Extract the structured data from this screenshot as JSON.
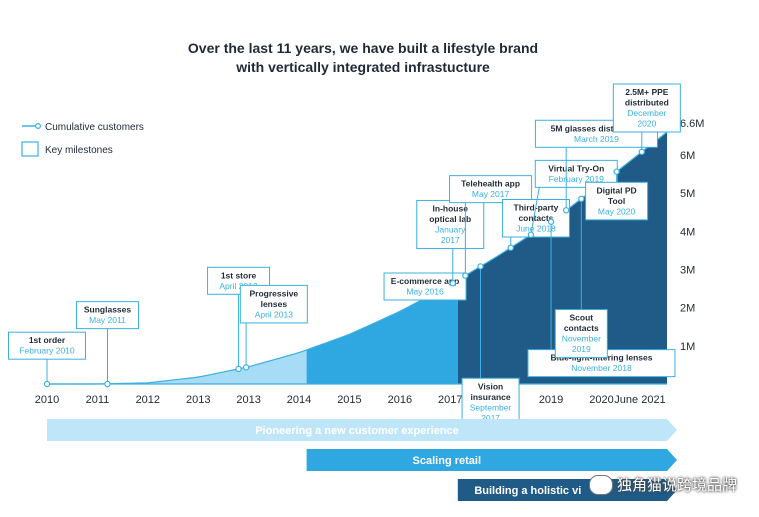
{
  "chart_data": {
    "type": "area",
    "title_lines": [
      "Over the last 11 years, we have built a lifestyle brand",
      "with vertically integrated infrastucture"
    ],
    "legend": [
      {
        "label": "Cumulative customers",
        "kind": "line"
      },
      {
        "label": "Key milestones",
        "kind": "box"
      }
    ],
    "x_ticks": [
      {
        "label": "2010",
        "t": 2010
      },
      {
        "label": "2011",
        "t": 2011
      },
      {
        "label": "2012",
        "t": 2012
      },
      {
        "label": "2013",
        "t": 2013
      },
      {
        "label": "2013",
        "t": 2014
      },
      {
        "label": "2014",
        "t": 2015
      },
      {
        "label": "2015",
        "t": 2016
      },
      {
        "label": "2016",
        "t": 2017
      },
      {
        "label": "2017",
        "t": 2018
      },
      {
        "label": "2018",
        "t": 2019
      },
      {
        "label": "2019",
        "t": 2020
      },
      {
        "label": "2020",
        "t": 2021
      },
      {
        "label": "June 2021",
        "t": 2022.3
      }
    ],
    "y_ticks": [
      {
        "label": "1M",
        "value": 1
      },
      {
        "label": "2M",
        "value": 2
      },
      {
        "label": "3M",
        "value": 3
      },
      {
        "label": "4M",
        "value": 4
      },
      {
        "label": "5M",
        "value": 5
      },
      {
        "label": "6M",
        "value": 6
      },
      {
        "label": "6.6M",
        "value": 6.6
      }
    ],
    "y_unit": "M customers",
    "xlim": [
      2010,
      2022.3
    ],
    "ylim": [
      0,
      6.6
    ],
    "series": [
      {
        "x": [
          2010,
          2011,
          2012,
          2013,
          2014,
          2015,
          2016,
          2017,
          2018,
          2019,
          2020,
          2021,
          2022.3
        ],
        "values": [
          0,
          0,
          0.03,
          0.18,
          0.45,
          0.82,
          1.3,
          1.9,
          2.6,
          3.4,
          4.25,
          5.25,
          6.6
        ]
      }
    ],
    "shaded_phases": [
      {
        "from": 2011.9,
        "to": 2015.15,
        "color": "#a6dcf6"
      },
      {
        "from": 2015.15,
        "to": 2018.15,
        "color": "#2fa7e0"
      },
      {
        "from": 2018.15,
        "to": 2022.3,
        "color": "#1f5b86"
      }
    ],
    "milestones": [
      {
        "title": [
          "1st order"
        ],
        "date": [
          "February 2010"
        ],
        "t": 2010,
        "box_pos": [
          2010,
          0.65
        ],
        "anchor": "below"
      },
      {
        "title": [
          "Sunglasses"
        ],
        "date": [
          "May 2011"
        ],
        "t": 2011.2,
        "box_pos": [
          2011.2,
          1.45
        ],
        "anchor": "below"
      },
      {
        "title": [
          "1st store"
        ],
        "date": [
          "April 2013"
        ],
        "t": 2013.8,
        "box_pos": [
          2013.8,
          2.35
        ],
        "anchor": "below"
      },
      {
        "title": [
          "Progressive",
          "lenses"
        ],
        "date": [
          "April 2013"
        ],
        "t": 2013.95,
        "box_pos": [
          2014.5,
          1.6
        ],
        "anchor": "below"
      },
      {
        "title": [
          "E-commerce app"
        ],
        "date": [
          "May 2016"
        ],
        "t": 2017.5,
        "box_pos": [
          2017.5,
          2.2
        ],
        "anchor": "below"
      },
      {
        "title": [
          "In-house",
          "optical lab"
        ],
        "date": [
          "January",
          "2017"
        ],
        "t": 2018.05,
        "box_pos": [
          2018.0,
          3.55
        ],
        "anchor": "below"
      },
      {
        "title": [
          "Telehealth app"
        ],
        "date": [
          "May 2017"
        ],
        "t": 2018.3,
        "box_pos": [
          2018.8,
          4.75
        ],
        "anchor": "below"
      },
      {
        "title": [
          "Vision",
          "insurance"
        ],
        "date": [
          "September",
          "2017"
        ],
        "t": 2018.6,
        "box_pos": [
          2018.8,
          0.15
        ],
        "anchor": "above"
      },
      {
        "title": [
          "Third-party",
          "contacts"
        ],
        "date": [
          "June 2018"
        ],
        "t": 2019.2,
        "box_pos": [
          2019.7,
          3.85
        ],
        "anchor": "below"
      },
      {
        "title": [
          "Virtual Try-On"
        ],
        "date": [
          "February 2019"
        ],
        "t": 2019.6,
        "box_pos": [
          2020.5,
          5.15
        ],
        "anchor": "below"
      },
      {
        "title": [
          "Blue-light-filtering lenses"
        ],
        "date": [
          "November 2018"
        ],
        "t": 2020.0,
        "box_pos": [
          2021.0,
          0.9
        ],
        "anchor": "above"
      },
      {
        "title": [
          "5M glasses distributed"
        ],
        "date": [
          "March 2019"
        ],
        "t": 2020.3,
        "box_pos": [
          2020.9,
          6.2
        ],
        "anchor": "below"
      },
      {
        "title": [
          "Scout",
          "contacts"
        ],
        "date": [
          "November",
          "2019"
        ],
        "t": 2020.6,
        "box_pos": [
          2020.6,
          1.95
        ],
        "anchor": "above"
      },
      {
        "title": [
          "Digital PD",
          "Tool"
        ],
        "date": [
          "May 2020"
        ],
        "t": 2021.3,
        "box_pos": [
          2021.3,
          4.3
        ],
        "anchor": "below"
      },
      {
        "title": [
          "2.5M+ PPE",
          "distributed"
        ],
        "date": [
          "December",
          "2020"
        ],
        "t": 2021.8,
        "box_pos": [
          2021.9,
          6.6
        ],
        "anchor": "below"
      }
    ],
    "phases": [
      {
        "label": "Pioneering a new customer experience",
        "from": 2010,
        "to": 2022.3,
        "row": 0,
        "color": "#bfe6f8"
      },
      {
        "label": "Scaling retail",
        "from": 2015.15,
        "to": 2022.3,
        "row": 1,
        "color": "#2fa7e0"
      },
      {
        "label": "Building a holistic vi",
        "from": 2018.15,
        "to": 2022.3,
        "row": 2,
        "color": "#1f5b86"
      }
    ]
  },
  "watermark": "独角猫说跨境品牌"
}
